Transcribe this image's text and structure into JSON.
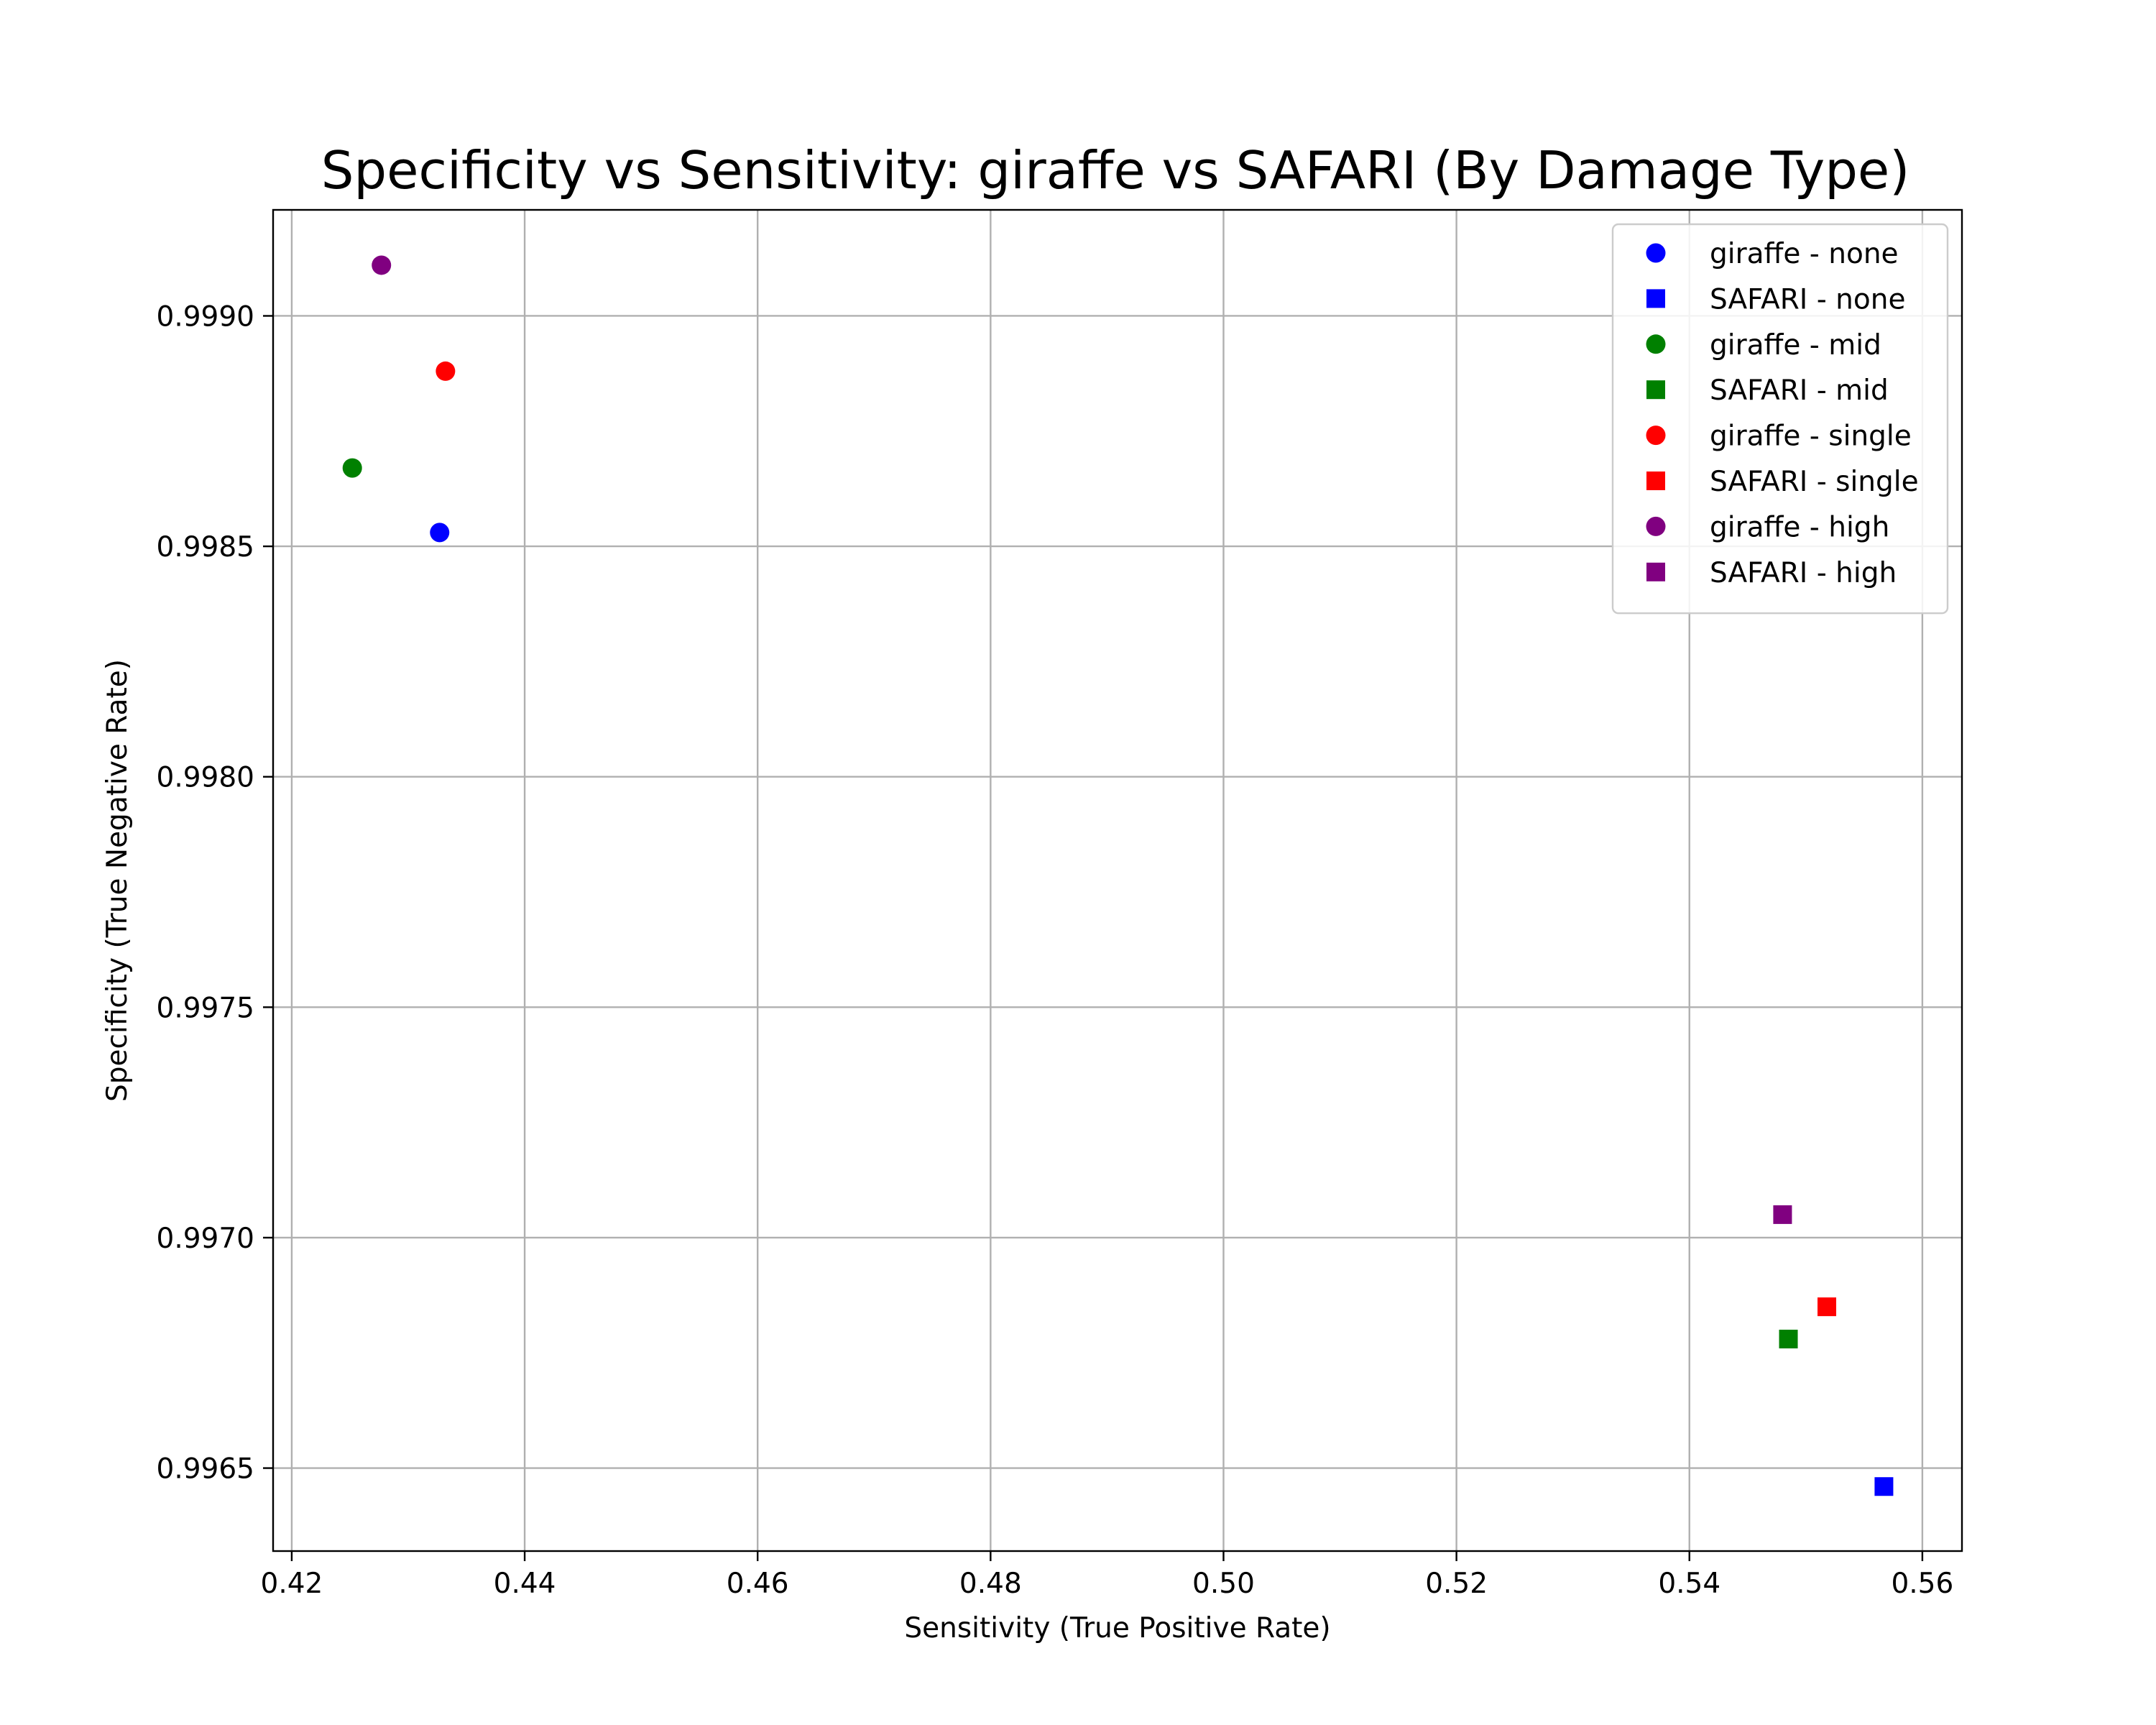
{
  "chart_data": {
    "type": "scatter",
    "title": "Specificity vs Sensitivity: giraffe vs SAFARI (By Damage Type)",
    "xlabel": "Sensitivity (True Positive Rate)",
    "ylabel": "Specificity (True Negative Rate)",
    "xlim": [
      0.4184,
      0.5634
    ],
    "ylim": [
      0.99632,
      0.99923
    ],
    "xticks": [
      0.42,
      0.44,
      0.46,
      0.48,
      0.5,
      0.52,
      0.54,
      0.56
    ],
    "xtick_labels": [
      "0.42",
      "0.44",
      "0.46",
      "0.48",
      "0.50",
      "0.52",
      "0.54",
      "0.56"
    ],
    "yticks": [
      0.9965,
      0.997,
      0.9975,
      0.998,
      0.9985,
      0.999
    ],
    "ytick_labels": [
      "0.9965",
      "0.9970",
      "0.9975",
      "0.9980",
      "0.9985",
      "0.9990"
    ],
    "grid": true,
    "legend_position": "top-right",
    "series": [
      {
        "name": "giraffe - none",
        "marker": "circle",
        "color": "#0000ff",
        "x": 0.4327,
        "y": 0.99853
      },
      {
        "name": "SAFARI - none",
        "marker": "square",
        "color": "#0000ff",
        "x": 0.5567,
        "y": 0.99646
      },
      {
        "name": "giraffe - mid",
        "marker": "circle",
        "color": "#008000",
        "x": 0.4252,
        "y": 0.99867
      },
      {
        "name": "SAFARI - mid",
        "marker": "square",
        "color": "#008000",
        "x": 0.5485,
        "y": 0.99678
      },
      {
        "name": "giraffe - single",
        "marker": "circle",
        "color": "#ff0000",
        "x": 0.4332,
        "y": 0.99888
      },
      {
        "name": "SAFARI - single",
        "marker": "square",
        "color": "#ff0000",
        "x": 0.5518,
        "y": 0.99685
      },
      {
        "name": "giraffe - high",
        "marker": "circle",
        "color": "#800080",
        "x": 0.4277,
        "y": 0.99911
      },
      {
        "name": "SAFARI - high",
        "marker": "square",
        "color": "#800080",
        "x": 0.548,
        "y": 0.99705
      }
    ]
  }
}
